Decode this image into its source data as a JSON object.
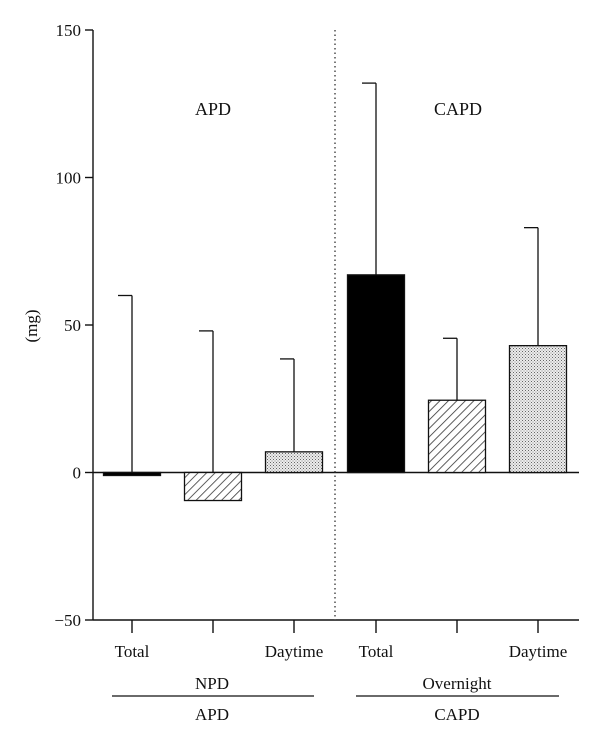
{
  "chart_data": {
    "type": "bar",
    "ylabel": "(mg)",
    "ylim": [
      -50,
      150
    ],
    "yticks": [
      -50,
      0,
      50,
      100,
      150
    ],
    "panels": [
      {
        "label": "APD"
      },
      {
        "label": "CAPD"
      }
    ],
    "categories": [
      "Total",
      "",
      "Daytime",
      "Total",
      "",
      "Daytime"
    ],
    "bars": [
      {
        "panel": "APD",
        "category": "Total",
        "value": -1,
        "error_upper": 60,
        "fill": "solid"
      },
      {
        "panel": "APD",
        "category": "",
        "value": -9.5,
        "error_upper": 48,
        "fill": "hatch"
      },
      {
        "panel": "APD",
        "category": "Daytime",
        "value": 7,
        "error_upper": 38.5,
        "fill": "dots"
      },
      {
        "panel": "CAPD",
        "category": "Total",
        "value": 67,
        "error_upper": 132,
        "fill": "solid"
      },
      {
        "panel": "CAPD",
        "category": "",
        "value": 24.5,
        "error_upper": 45.5,
        "fill": "hatch"
      },
      {
        "panel": "CAPD",
        "category": "Daytime",
        "value": 43,
        "error_upper": 83,
        "fill": "dots"
      }
    ],
    "group_labels": [
      {
        "sub": "NPD",
        "main": "APD"
      },
      {
        "sub": "Overnight",
        "main": "CAPD"
      }
    ],
    "colors": {
      "solid": "#000000",
      "hatch": "#ffffff",
      "dots": "#e0e0e0",
      "axis": "#111111"
    }
  }
}
